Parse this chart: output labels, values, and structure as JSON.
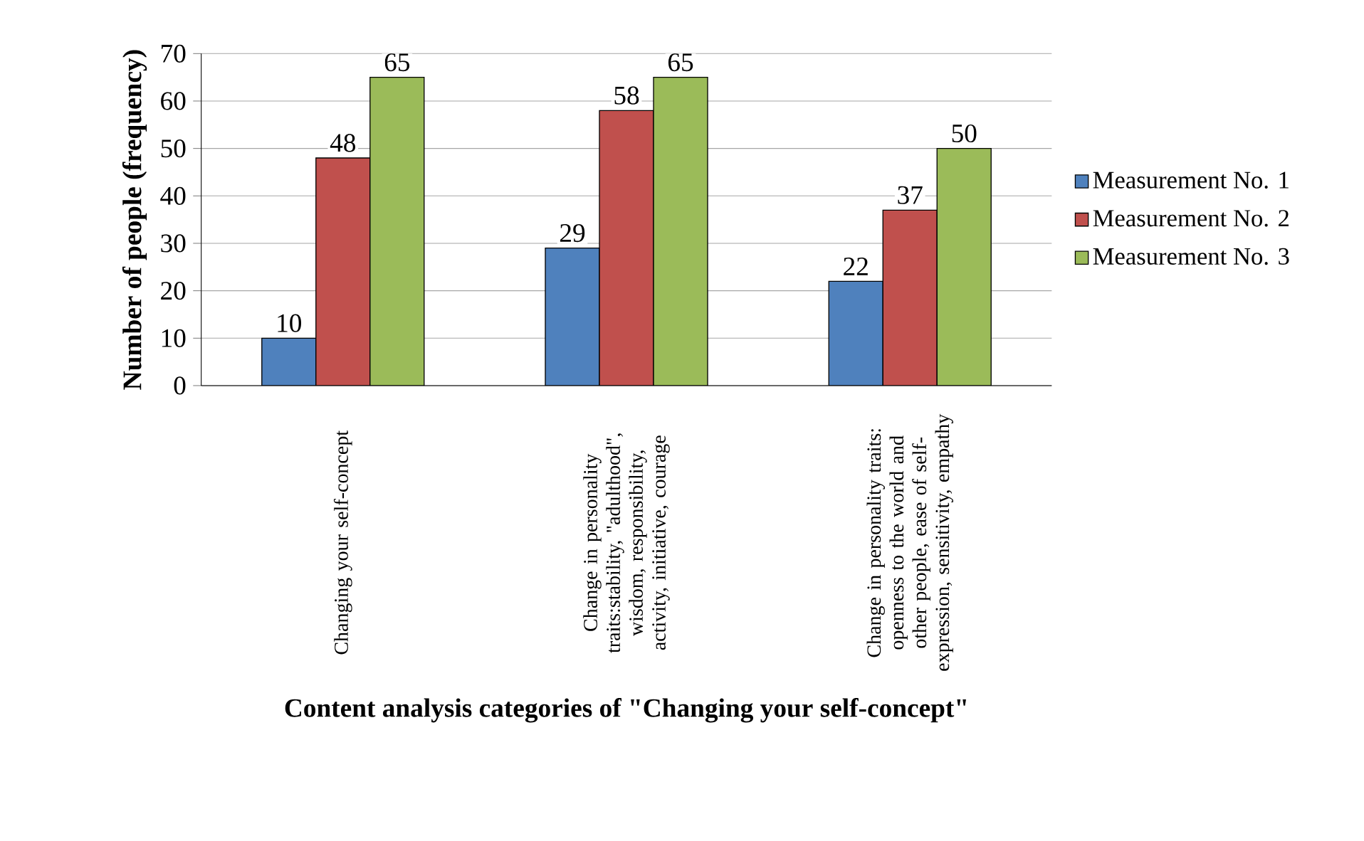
{
  "chart_data": {
    "type": "bar",
    "xlabel": "Content analysis categories of \"Changing your self-concept\"",
    "ylabel": "Number of people (frequency)",
    "categories": [
      "Changing your self-concept",
      "Change in personality traits:stability, \"adulthood\", wisdom, responsibility, activity, initiative, courage",
      "Change in personality traits: openness to the world and other people, ease of self-expression, sensitivity, empathy"
    ],
    "series": [
      {
        "name": "Measurement No. 1",
        "color": "#4f81bd",
        "values": [
          10,
          29,
          22
        ]
      },
      {
        "name": "Measurement No. 2",
        "color": "#c0504d",
        "values": [
          48,
          58,
          37
        ]
      },
      {
        "name": "Measurement No. 3",
        "color": "#9bbb59",
        "values": [
          65,
          65,
          50
        ]
      }
    ],
    "ylim": [
      0,
      70
    ],
    "yticks": [
      0,
      10,
      20,
      30,
      40,
      50,
      60,
      70
    ],
    "grid": "y",
    "legend": "right",
    "data_labels": true
  }
}
